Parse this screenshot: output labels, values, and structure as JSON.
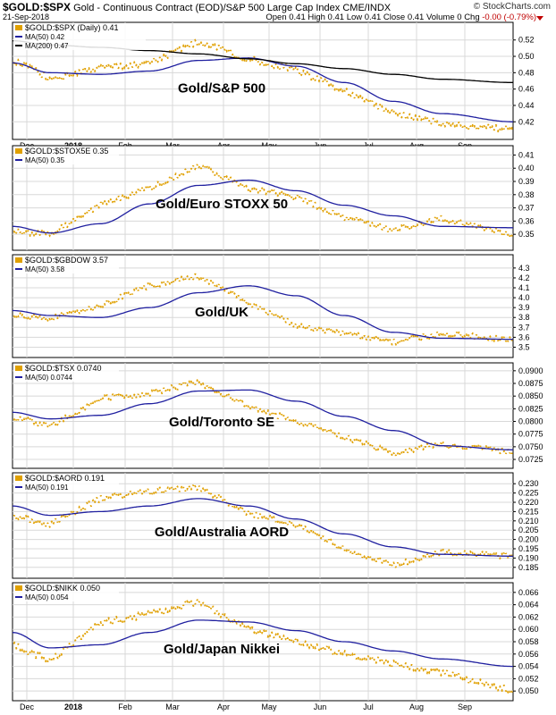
{
  "header": {
    "symbol": "$GOLD:$SPX",
    "description": "Gold - Continuous Contract (EOD)/S&P 500 Large Cap Index",
    "exchange": "CME/INDX",
    "date": "21-Sep-2018",
    "logo": "© StockCharts.com",
    "ohlc": "Open 0.41  High 0.41  Low 0.41  Close 0.41  Volume 0  Chg",
    "change": "-0.00 (-0.79%)"
  },
  "colors": {
    "price": "#e0a000",
    "ma50": "#2020a0",
    "ma200": "#000000",
    "grid": "#d8d8d8",
    "border": "#000000",
    "change_negative": "#c00000"
  },
  "x_axis_ticks": [
    "Dec",
    "2018",
    "Feb",
    "Mar",
    "Apr",
    "May",
    "Jun",
    "Jul",
    "Aug",
    "Sep"
  ],
  "chart_data": [
    {
      "type": "line",
      "title": "Gold/S&P 500",
      "legend": [
        "$GOLD:$SPX (Daily) 0.41",
        "MA(50) 0.42",
        "MA(200) 0.47"
      ],
      "ylim": [
        0.405,
        0.535
      ],
      "yticks": [
        "0.52",
        "0.50",
        "0.48",
        "0.46",
        "0.44",
        "0.42"
      ],
      "x": [
        "Dec",
        "Jan",
        "Feb",
        "Mar",
        "Apr",
        "May",
        "Jun",
        "Jul",
        "Aug",
        "Sep",
        "Sep 21"
      ],
      "series": [
        {
          "name": "$GOLD:$SPX (Daily)",
          "values": [
            0.496,
            0.473,
            0.485,
            0.492,
            0.518,
            0.497,
            0.483,
            0.458,
            0.43,
            0.418,
            0.41
          ]
        },
        {
          "name": "MA(50)",
          "values": [
            0.492,
            0.48,
            0.478,
            0.482,
            0.495,
            0.498,
            0.488,
            0.468,
            0.445,
            0.43,
            0.42
          ]
        },
        {
          "name": "MA(200)",
          "values": [
            0.519,
            0.514,
            0.511,
            0.507,
            0.503,
            0.497,
            0.491,
            0.485,
            0.478,
            0.472,
            0.468
          ]
        }
      ]
    },
    {
      "type": "line",
      "title": "Gold/Euro STOXX 50",
      "legend": [
        "$GOLD:$STOX5E 0.35",
        "MA(50) 0.35"
      ],
      "ylim": [
        0.342,
        0.413
      ],
      "yticks": [
        "0.41",
        "0.40",
        "0.39",
        "0.38",
        "0.37",
        "0.36",
        "0.35"
      ],
      "x": [
        "Dec",
        "Jan",
        "Feb",
        "Mar",
        "Apr",
        "May",
        "Jun",
        "Jul",
        "Aug",
        "Sep",
        "Sep 21"
      ],
      "series": [
        {
          "name": "$GOLD:$STOX5E",
          "values": [
            0.352,
            0.35,
            0.372,
            0.385,
            0.402,
            0.385,
            0.378,
            0.363,
            0.353,
            0.362,
            0.35
          ]
        },
        {
          "name": "MA(50)",
          "values": [
            0.356,
            0.351,
            0.358,
            0.373,
            0.387,
            0.391,
            0.383,
            0.372,
            0.364,
            0.356,
            0.355
          ]
        }
      ]
    },
    {
      "type": "line",
      "title": "Gold/UK",
      "legend": [
        "$GOLD:$GBDOW 3.57",
        "MA(50) 3.58"
      ],
      "ylim": [
        3.45,
        4.38
      ],
      "yticks": [
        "4.3",
        "4.2",
        "4.1",
        "4.0",
        "3.9",
        "3.8",
        "3.7",
        "3.6",
        "3.5"
      ],
      "x": [
        "Dec",
        "Jan",
        "Feb",
        "Mar",
        "Apr",
        "May",
        "Jun",
        "Jul",
        "Aug",
        "Sep",
        "Sep 21"
      ],
      "series": [
        {
          "name": "$GOLD:$GBDOW",
          "values": [
            3.83,
            3.79,
            3.92,
            4.12,
            4.22,
            3.95,
            3.72,
            3.64,
            3.55,
            3.64,
            3.57
          ]
        },
        {
          "name": "MA(50)",
          "values": [
            3.87,
            3.82,
            3.8,
            3.9,
            4.05,
            4.12,
            4.02,
            3.82,
            3.65,
            3.59,
            3.58
          ]
        }
      ]
    },
    {
      "type": "line",
      "title": "Gold/Toronto SE",
      "legend": [
        "$GOLD:$TSX 0.0740",
        "MA(50) 0.0744"
      ],
      "ylim": [
        0.0718,
        0.0905
      ],
      "yticks": [
        "0.0900",
        "0.0875",
        "0.0850",
        "0.0825",
        "0.0800",
        "0.0775",
        "0.0750",
        "0.0725"
      ],
      "x": [
        "Dec",
        "Jan",
        "Feb",
        "Mar",
        "Apr",
        "May",
        "Jun",
        "Jul",
        "Aug",
        "Sep",
        "Sep 21"
      ],
      "series": [
        {
          "name": "$GOLD:$TSX",
          "values": [
            0.081,
            0.079,
            0.0845,
            0.0855,
            0.0878,
            0.083,
            0.08,
            0.077,
            0.0738,
            0.0755,
            0.074
          ]
        },
        {
          "name": "MA(50)",
          "values": [
            0.0818,
            0.0805,
            0.0812,
            0.0835,
            0.086,
            0.0862,
            0.084,
            0.081,
            0.0782,
            0.0752,
            0.0744
          ]
        }
      ]
    },
    {
      "type": "line",
      "title": "Gold/Australia AORD",
      "legend": [
        "$GOLD:$AORD 0.191",
        "MA(50) 0.191"
      ],
      "ylim": [
        0.182,
        0.233
      ],
      "yticks": [
        "0.230",
        "0.225",
        "0.220",
        "0.215",
        "0.210",
        "0.205",
        "0.200",
        "0.195",
        "0.190",
        "0.185"
      ],
      "x": [
        "Dec",
        "Jan",
        "Feb",
        "Mar",
        "Apr",
        "May",
        "Jun",
        "Jul",
        "Aug",
        "Sep",
        "Sep 21"
      ],
      "series": [
        {
          "name": "$GOLD:$AORD",
          "values": [
            0.213,
            0.208,
            0.222,
            0.226,
            0.228,
            0.214,
            0.208,
            0.195,
            0.186,
            0.193,
            0.191
          ]
        },
        {
          "name": "MA(50)",
          "values": [
            0.218,
            0.213,
            0.215,
            0.218,
            0.222,
            0.218,
            0.211,
            0.203,
            0.196,
            0.192,
            0.191
          ]
        }
      ]
    },
    {
      "type": "line",
      "title": "Gold/Japan Nikkei",
      "legend": [
        "$GOLD:$NIKK 0.050",
        "MA(50) 0.054"
      ],
      "ylim": [
        0.0493,
        0.0667
      ],
      "yticks": [
        "0.066",
        "0.064",
        "0.062",
        "0.060",
        "0.058",
        "0.056",
        "0.054",
        "0.052",
        "0.050"
      ],
      "x": [
        "Dec",
        "Jan",
        "Feb",
        "Mar",
        "Apr",
        "May",
        "Jun",
        "Jul",
        "Aug",
        "Sep",
        "Sep 21"
      ],
      "series": [
        {
          "name": "$GOLD:$NIKK",
          "values": [
            0.0575,
            0.055,
            0.061,
            0.0625,
            0.0645,
            0.06,
            0.058,
            0.056,
            0.0545,
            0.053,
            0.05
          ]
        },
        {
          "name": "MA(50)",
          "values": [
            0.0595,
            0.057,
            0.0575,
            0.0595,
            0.0615,
            0.0612,
            0.0598,
            0.058,
            0.0565,
            0.0552,
            0.054
          ]
        }
      ]
    }
  ]
}
